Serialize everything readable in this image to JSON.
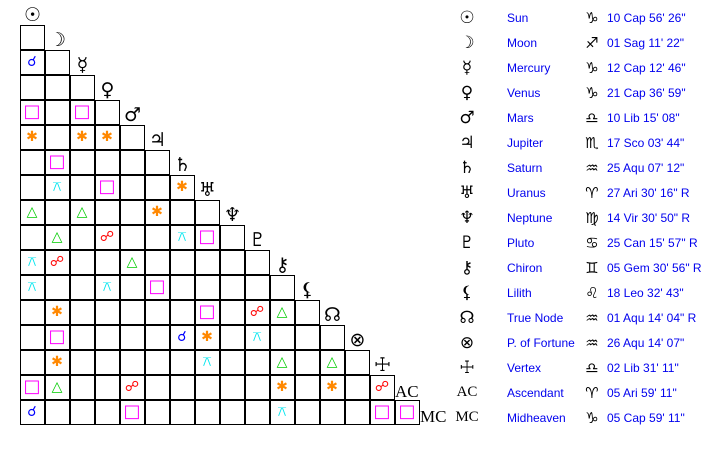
{
  "planets": [
    {
      "name": "Sun",
      "glyph": "☉",
      "sign_glyph": "♑",
      "position": "10 Cap 56' 26\""
    },
    {
      "name": "Moon",
      "glyph": "☽",
      "sign_glyph": "♐",
      "position": "01 Sag 11' 22\""
    },
    {
      "name": "Mercury",
      "glyph": "☿",
      "sign_glyph": "♑",
      "position": "12 Cap 12' 46\""
    },
    {
      "name": "Venus",
      "glyph": "♀",
      "sign_glyph": "♑",
      "position": "21 Cap 36' 59\""
    },
    {
      "name": "Mars",
      "glyph": "♂",
      "sign_glyph": "♎",
      "position": "10 Lib 15' 08\""
    },
    {
      "name": "Jupiter",
      "glyph": "♃",
      "sign_glyph": "♏",
      "position": "17 Sco 03' 44\""
    },
    {
      "name": "Saturn",
      "glyph": "♄",
      "sign_glyph": "♒",
      "position": "25 Aqu 07' 12\""
    },
    {
      "name": "Uranus",
      "glyph": "♅",
      "sign_glyph": "♈",
      "position": "27 Ari 30' 16\" R"
    },
    {
      "name": "Neptune",
      "glyph": "♆",
      "sign_glyph": "♍",
      "position": "14 Vir 30' 50\" R"
    },
    {
      "name": "Pluto",
      "glyph": "♇",
      "sign_glyph": "♋",
      "position": "25 Can 15' 57\" R"
    },
    {
      "name": "Chiron",
      "glyph": "⚷",
      "sign_glyph": "♊",
      "position": "05 Gem 30' 56\" R"
    },
    {
      "name": "Lilith",
      "glyph": "⚸",
      "sign_glyph": "♌",
      "position": "18 Leo 32' 43\""
    },
    {
      "name": "True Node",
      "glyph": "☊",
      "sign_glyph": "♒",
      "position": "01 Aqu 14' 04\" R"
    },
    {
      "name": "P. of Fortune",
      "glyph": "⊗",
      "sign_glyph": "♒",
      "position": "26 Aqu 14' 07\""
    },
    {
      "name": "Vertex",
      "glyph": "☩",
      "sign_glyph": "♎",
      "position": "02 Lib 31' 11\""
    },
    {
      "name": "Ascendant",
      "glyph": "AC",
      "sign_glyph": "♈",
      "position": "05 Ari 59' 11\""
    },
    {
      "name": "Midheaven",
      "glyph": "MC",
      "sign_glyph": "♑",
      "position": "05 Cap 59' 11\""
    }
  ],
  "aspect_types": {
    "conjunction": {
      "glyph": "☌",
      "color": "#0000ff"
    },
    "square": {
      "glyph": "□",
      "color": "#ff00ff"
    },
    "sextile": {
      "glyph": "✱",
      "color": "#ff8800"
    },
    "trine": {
      "glyph": "△",
      "color": "#00cc00"
    },
    "opposition": {
      "glyph": "☍",
      "color": "#ff0000"
    },
    "quincunx": {
      "glyph": "⚻",
      "color": "#00e5ee"
    }
  },
  "aspects": [
    [
      "Mercury",
      "Sun",
      "conjunction"
    ],
    [
      "Mars",
      "Sun",
      "square"
    ],
    [
      "Mars",
      "Mercury",
      "square"
    ],
    [
      "Jupiter",
      "Sun",
      "sextile"
    ],
    [
      "Jupiter",
      "Mercury",
      "sextile"
    ],
    [
      "Jupiter",
      "Venus",
      "sextile"
    ],
    [
      "Saturn",
      "Moon",
      "square"
    ],
    [
      "Uranus",
      "Moon",
      "quincunx"
    ],
    [
      "Uranus",
      "Venus",
      "square"
    ],
    [
      "Uranus",
      "Saturn",
      "sextile"
    ],
    [
      "Neptune",
      "Sun",
      "trine"
    ],
    [
      "Neptune",
      "Mercury",
      "trine"
    ],
    [
      "Neptune",
      "Jupiter",
      "sextile"
    ],
    [
      "Pluto",
      "Moon",
      "trine"
    ],
    [
      "Pluto",
      "Venus",
      "opposition"
    ],
    [
      "Pluto",
      "Saturn",
      "quincunx"
    ],
    [
      "Pluto",
      "Uranus",
      "square"
    ],
    [
      "Chiron",
      "Sun",
      "quincunx"
    ],
    [
      "Chiron",
      "Moon",
      "opposition"
    ],
    [
      "Chiron",
      "Mars",
      "trine"
    ],
    [
      "Lilith",
      "Sun",
      "quincunx"
    ],
    [
      "Lilith",
      "Venus",
      "quincunx"
    ],
    [
      "Lilith",
      "Jupiter",
      "square"
    ],
    [
      "True Node",
      "Moon",
      "sextile"
    ],
    [
      "True Node",
      "Uranus",
      "square"
    ],
    [
      "True Node",
      "Pluto",
      "opposition"
    ],
    [
      "True Node",
      "Chiron",
      "trine"
    ],
    [
      "P. of Fortune",
      "Moon",
      "square"
    ],
    [
      "P. of Fortune",
      "Saturn",
      "conjunction"
    ],
    [
      "P. of Fortune",
      "Uranus",
      "sextile"
    ],
    [
      "P. of Fortune",
      "Pluto",
      "quincunx"
    ],
    [
      "Vertex",
      "Moon",
      "sextile"
    ],
    [
      "Vertex",
      "Uranus",
      "quincunx"
    ],
    [
      "Vertex",
      "Chiron",
      "trine"
    ],
    [
      "Vertex",
      "True Node",
      "trine"
    ],
    [
      "Ascendant",
      "Sun",
      "square"
    ],
    [
      "Ascendant",
      "Moon",
      "trine"
    ],
    [
      "Ascendant",
      "Mars",
      "opposition"
    ],
    [
      "Ascendant",
      "Chiron",
      "sextile"
    ],
    [
      "Ascendant",
      "True Node",
      "sextile"
    ],
    [
      "Ascendant",
      "Vertex",
      "opposition"
    ],
    [
      "Midheaven",
      "Sun",
      "conjunction"
    ],
    [
      "Midheaven",
      "Mars",
      "square"
    ],
    [
      "Midheaven",
      "Chiron",
      "quincunx"
    ],
    [
      "Midheaven",
      "Vertex",
      "square"
    ],
    [
      "Midheaven",
      "Ascendant",
      "square"
    ]
  ]
}
